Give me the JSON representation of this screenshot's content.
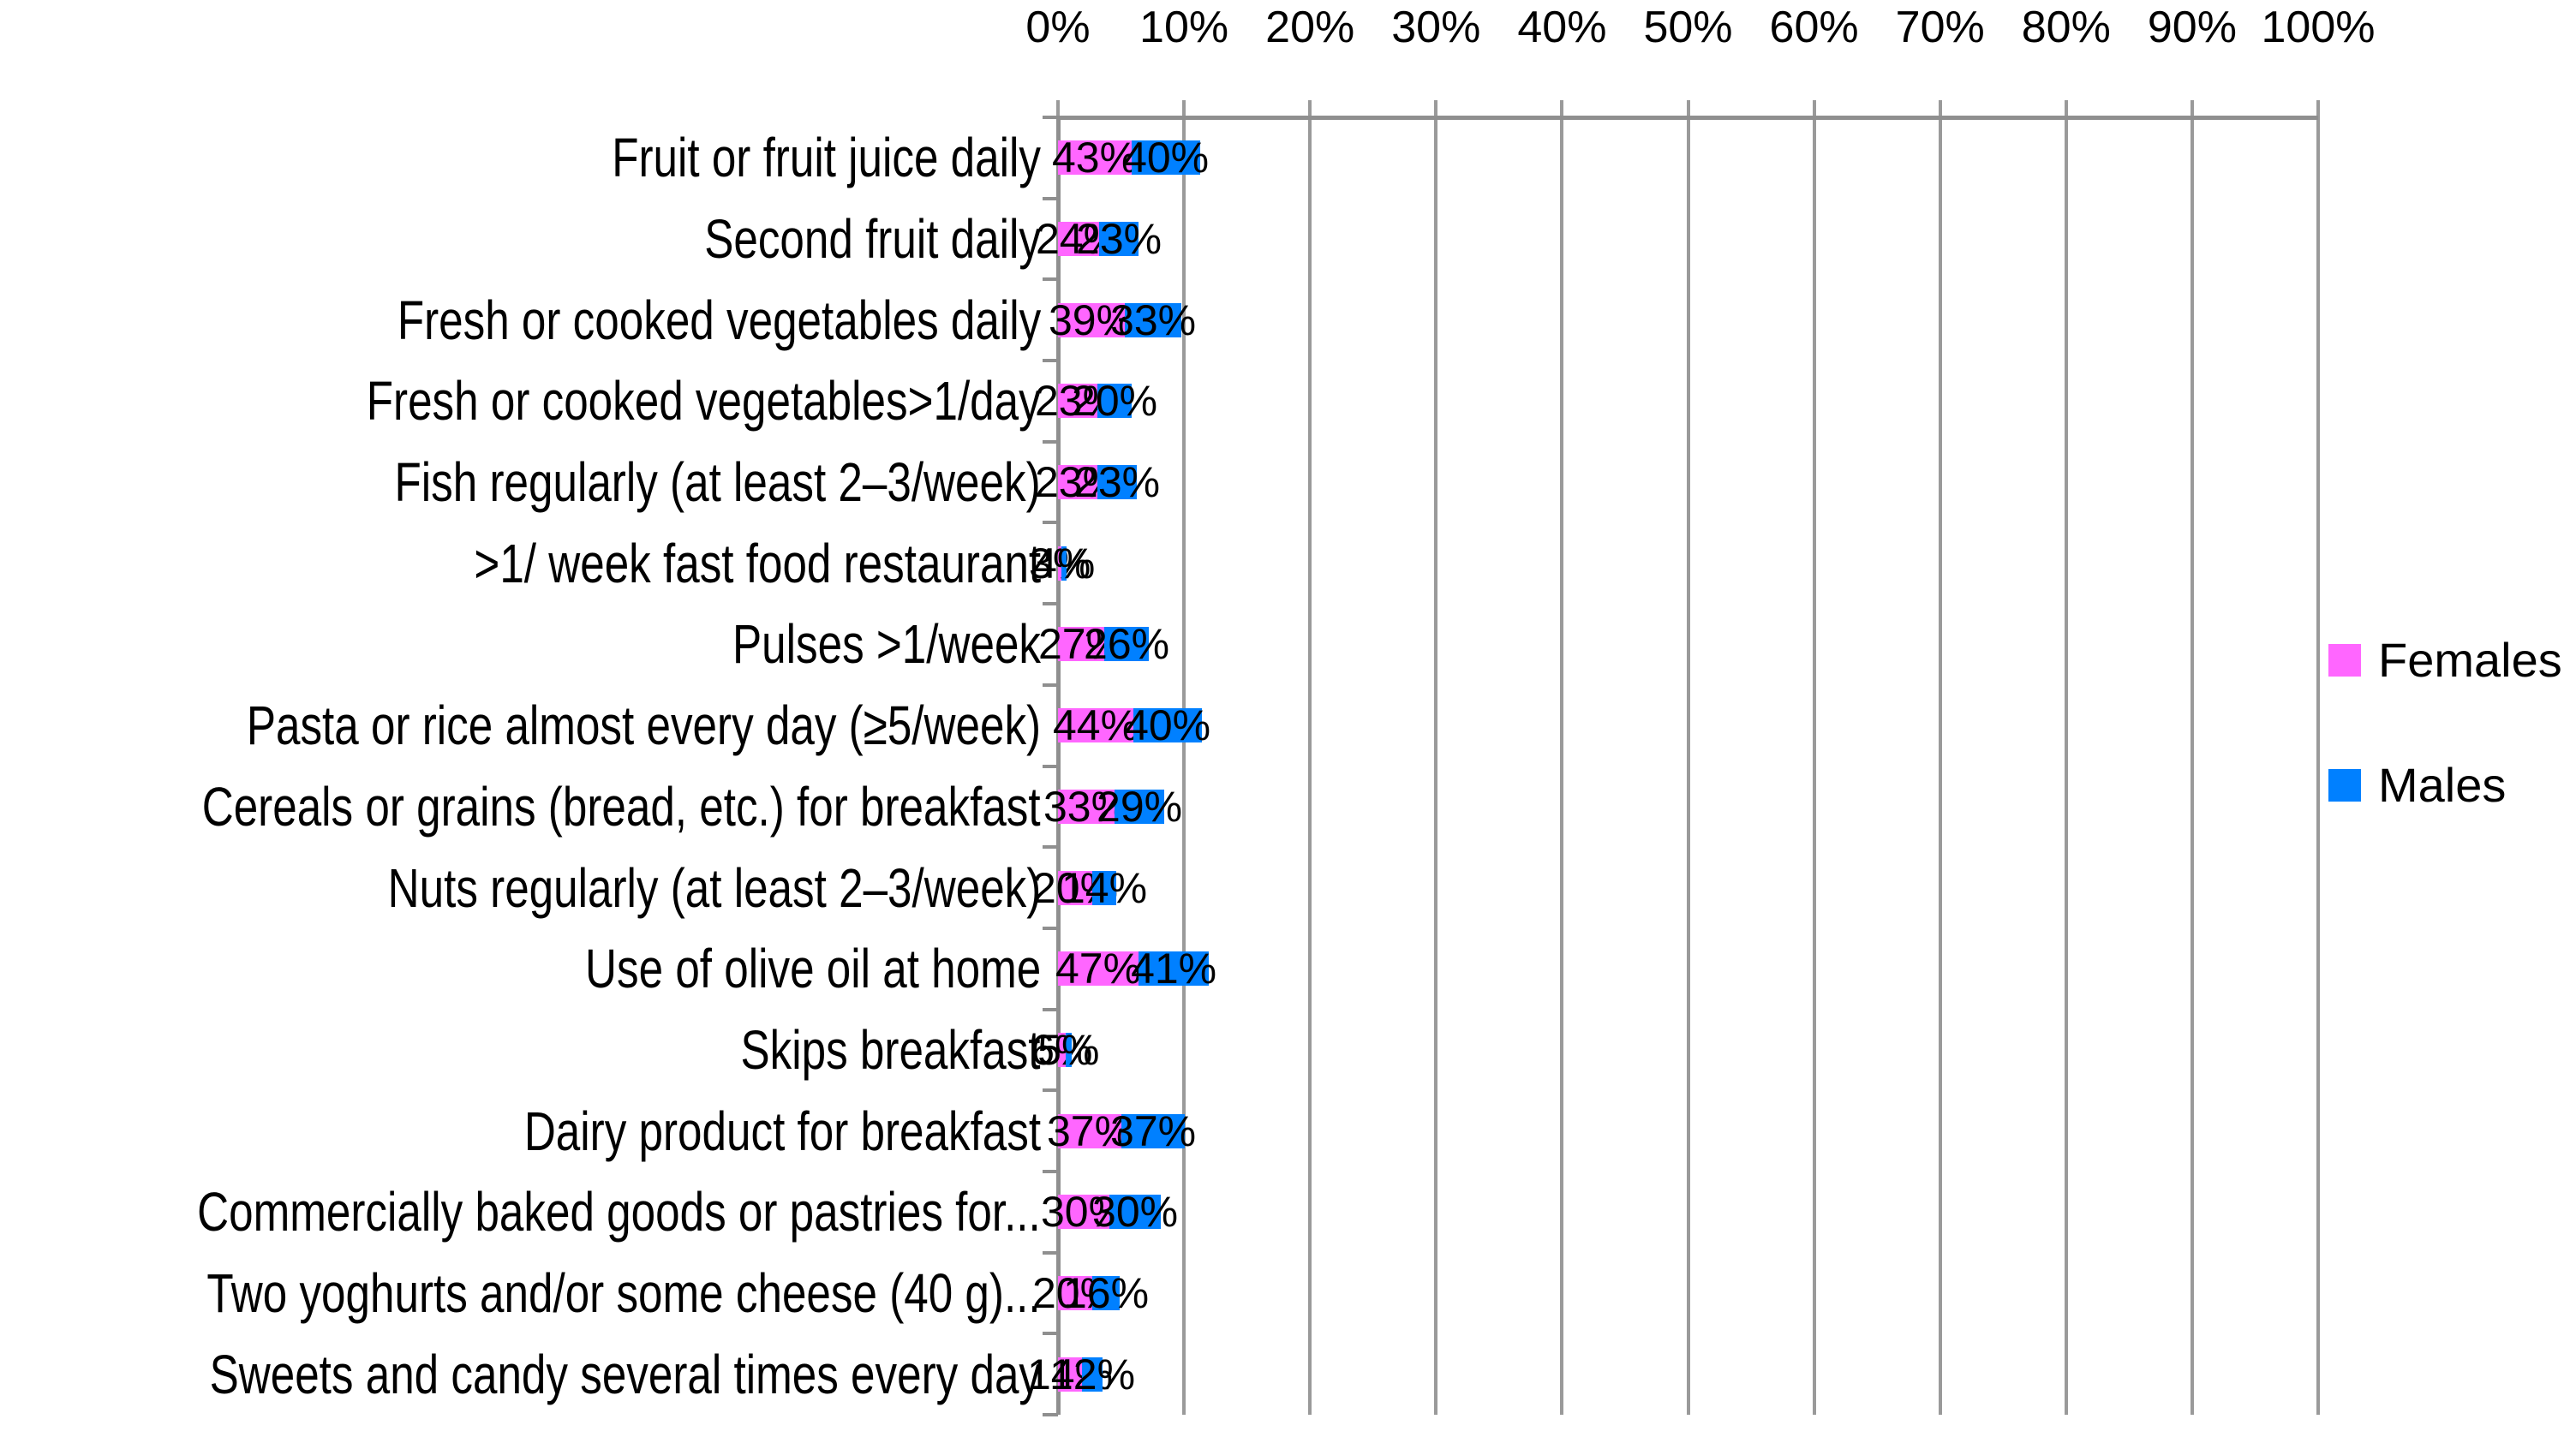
{
  "chart_data": {
    "type": "bar",
    "orientation": "horizontal",
    "stacked": true,
    "title": "",
    "categories": [
      "Fruit or fruit juice daily",
      "Second fruit daily",
      "Fresh or cooked vegetables daily",
      "Fresh or cooked vegetables>1/day",
      "Fish regularly (at least 2–3/week)",
      ">1/ week fast food restaurant",
      "Pulses >1/week",
      "Pasta or rice almost every day (≥5/week)",
      "Cereals or grains (bread, etc.) for breakfast",
      "Nuts regularly (at least 2–3/week)",
      "Use of olive oil at home",
      "Skips breakfast",
      "Dairy product for breakfast",
      "Commercially baked goods or pastries for...",
      "Two yoghurts and/or some cheese (40 g)...",
      "Sweets and candy several times every day"
    ],
    "series": [
      {
        "name": "Females",
        "color": "#FF66FF",
        "values": [
          43,
          24,
          39,
          23,
          23,
          3,
          27,
          44,
          33,
          20,
          47,
          6,
          37,
          30,
          20,
          14
        ],
        "labels": [
          "43%",
          "24%",
          "39%",
          "23%",
          "23%",
          "3%",
          "27%",
          "44%",
          "33%",
          "20%",
          "47%",
          "6%",
          "37%",
          "30%",
          "20%",
          "14%"
        ]
      },
      {
        "name": "Males",
        "color": "#0080FF",
        "values": [
          40,
          23,
          33,
          20,
          23,
          4,
          26,
          40,
          29,
          14,
          41,
          5,
          37,
          30,
          16,
          12
        ],
        "labels": [
          "40%",
          "23%",
          "33%",
          "20%",
          "23%",
          "4%",
          "26%",
          "40%",
          "29%",
          "14%",
          "41%",
          "5%",
          "37%",
          "30%",
          "16%",
          "12%"
        ]
      }
    ],
    "x_axis": {
      "position": "top",
      "min": 0,
      "max": 100,
      "step": 10,
      "tick_labels": [
        "0%",
        "10%",
        "20%",
        "30%",
        "40%",
        "50%",
        "60%",
        "70%",
        "80%",
        "90%",
        "100%"
      ]
    },
    "legend": {
      "position": "right",
      "entries": [
        "Females",
        "Males"
      ]
    },
    "grid": {
      "show": true,
      "gridline_color": "#9A9A9A",
      "axis_color": "#8F8F8F"
    },
    "data_label_color": "#000000"
  }
}
